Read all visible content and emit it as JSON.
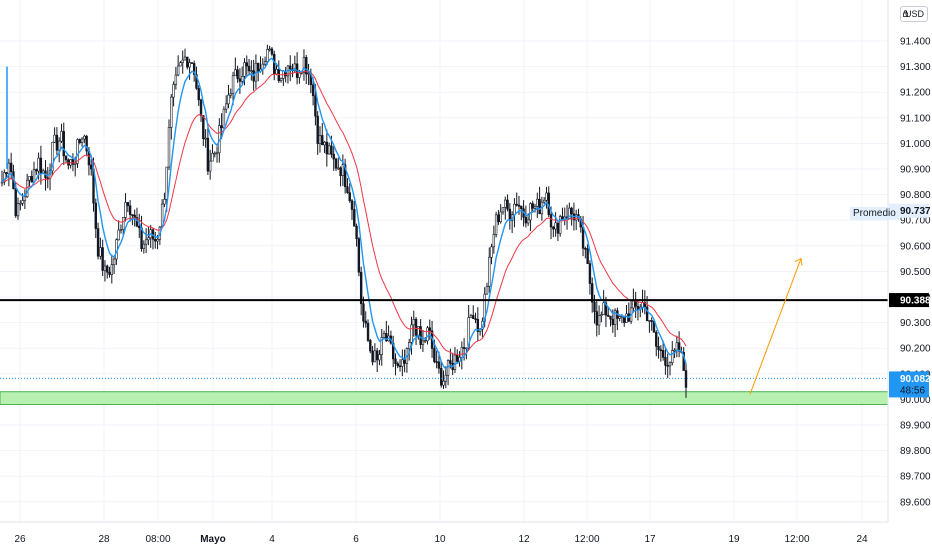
{
  "currency_button": {
    "label": "USD"
  },
  "chart_data": {
    "type": "candlestick",
    "ylim": [
      89.52,
      91.55
    ],
    "y_ticks": [
      "91.400",
      "91.300",
      "91.200",
      "91.100",
      "91.000",
      "90.900",
      "90.800",
      "90.700",
      "90.600",
      "90.500",
      "90.400",
      "90.300",
      "90.200",
      "90.100",
      "90.000",
      "89.900",
      "89.800",
      "89.700",
      "89.600"
    ],
    "x_ticks": [
      "26",
      "28",
      "08:00",
      "Mayo",
      "4",
      "6",
      "10",
      "12",
      "12:00",
      "17",
      "19",
      "12:00",
      "24"
    ],
    "bold_x_tick": "Mayo",
    "close_series": [
      90.85,
      90.95,
      90.72,
      90.8,
      90.88,
      90.93,
      90.86,
      90.99,
      91.02,
      90.91,
      90.95,
      91.05,
      90.92,
      90.6,
      90.49,
      90.52,
      90.67,
      90.8,
      90.7,
      90.6,
      90.64,
      90.62,
      90.78,
      91.15,
      91.28,
      91.34,
      91.32,
      91.1,
      90.93,
      90.97,
      91.08,
      91.22,
      91.27,
      91.3,
      91.25,
      91.32,
      91.37,
      91.3,
      91.27,
      91.32,
      91.28,
      91.33,
      91.26,
      91.02,
      90.98,
      90.93,
      90.91,
      90.84,
      90.7,
      90.32,
      90.2,
      90.14,
      90.25,
      90.18,
      90.1,
      90.15,
      90.32,
      90.2,
      90.27,
      90.12,
      90.08,
      90.13,
      90.18,
      90.22,
      90.36,
      90.26,
      90.47,
      90.68,
      90.76,
      90.73,
      90.78,
      90.72,
      90.75,
      90.75,
      90.82,
      90.64,
      90.72,
      90.73,
      90.72,
      90.6,
      90.45,
      90.3,
      90.35,
      90.32,
      90.3,
      90.33,
      90.35,
      90.38,
      90.32,
      90.2,
      90.17,
      90.15,
      90.2,
      90.08
    ],
    "series": [
      {
        "name": "Promedio",
        "color": "#2196f3",
        "value": "90.737"
      },
      {
        "color": "#f23645"
      }
    ],
    "price": {
      "value": "90.082",
      "countdown": "48:56"
    },
    "horizontal_line": {
      "value": "90.388"
    },
    "support_zone": {
      "from": 89.98,
      "to": 90.03
    },
    "projection_arrow": {
      "from": 90.02,
      "to": 90.55
    },
    "colors": {
      "up": "#131722",
      "down": "#131722",
      "ma_fast": "#2196f3",
      "ma_slow": "#f23645",
      "zone": "#b7f0b1",
      "arrow": "#ff9800",
      "last_price": "#2196f3"
    }
  }
}
